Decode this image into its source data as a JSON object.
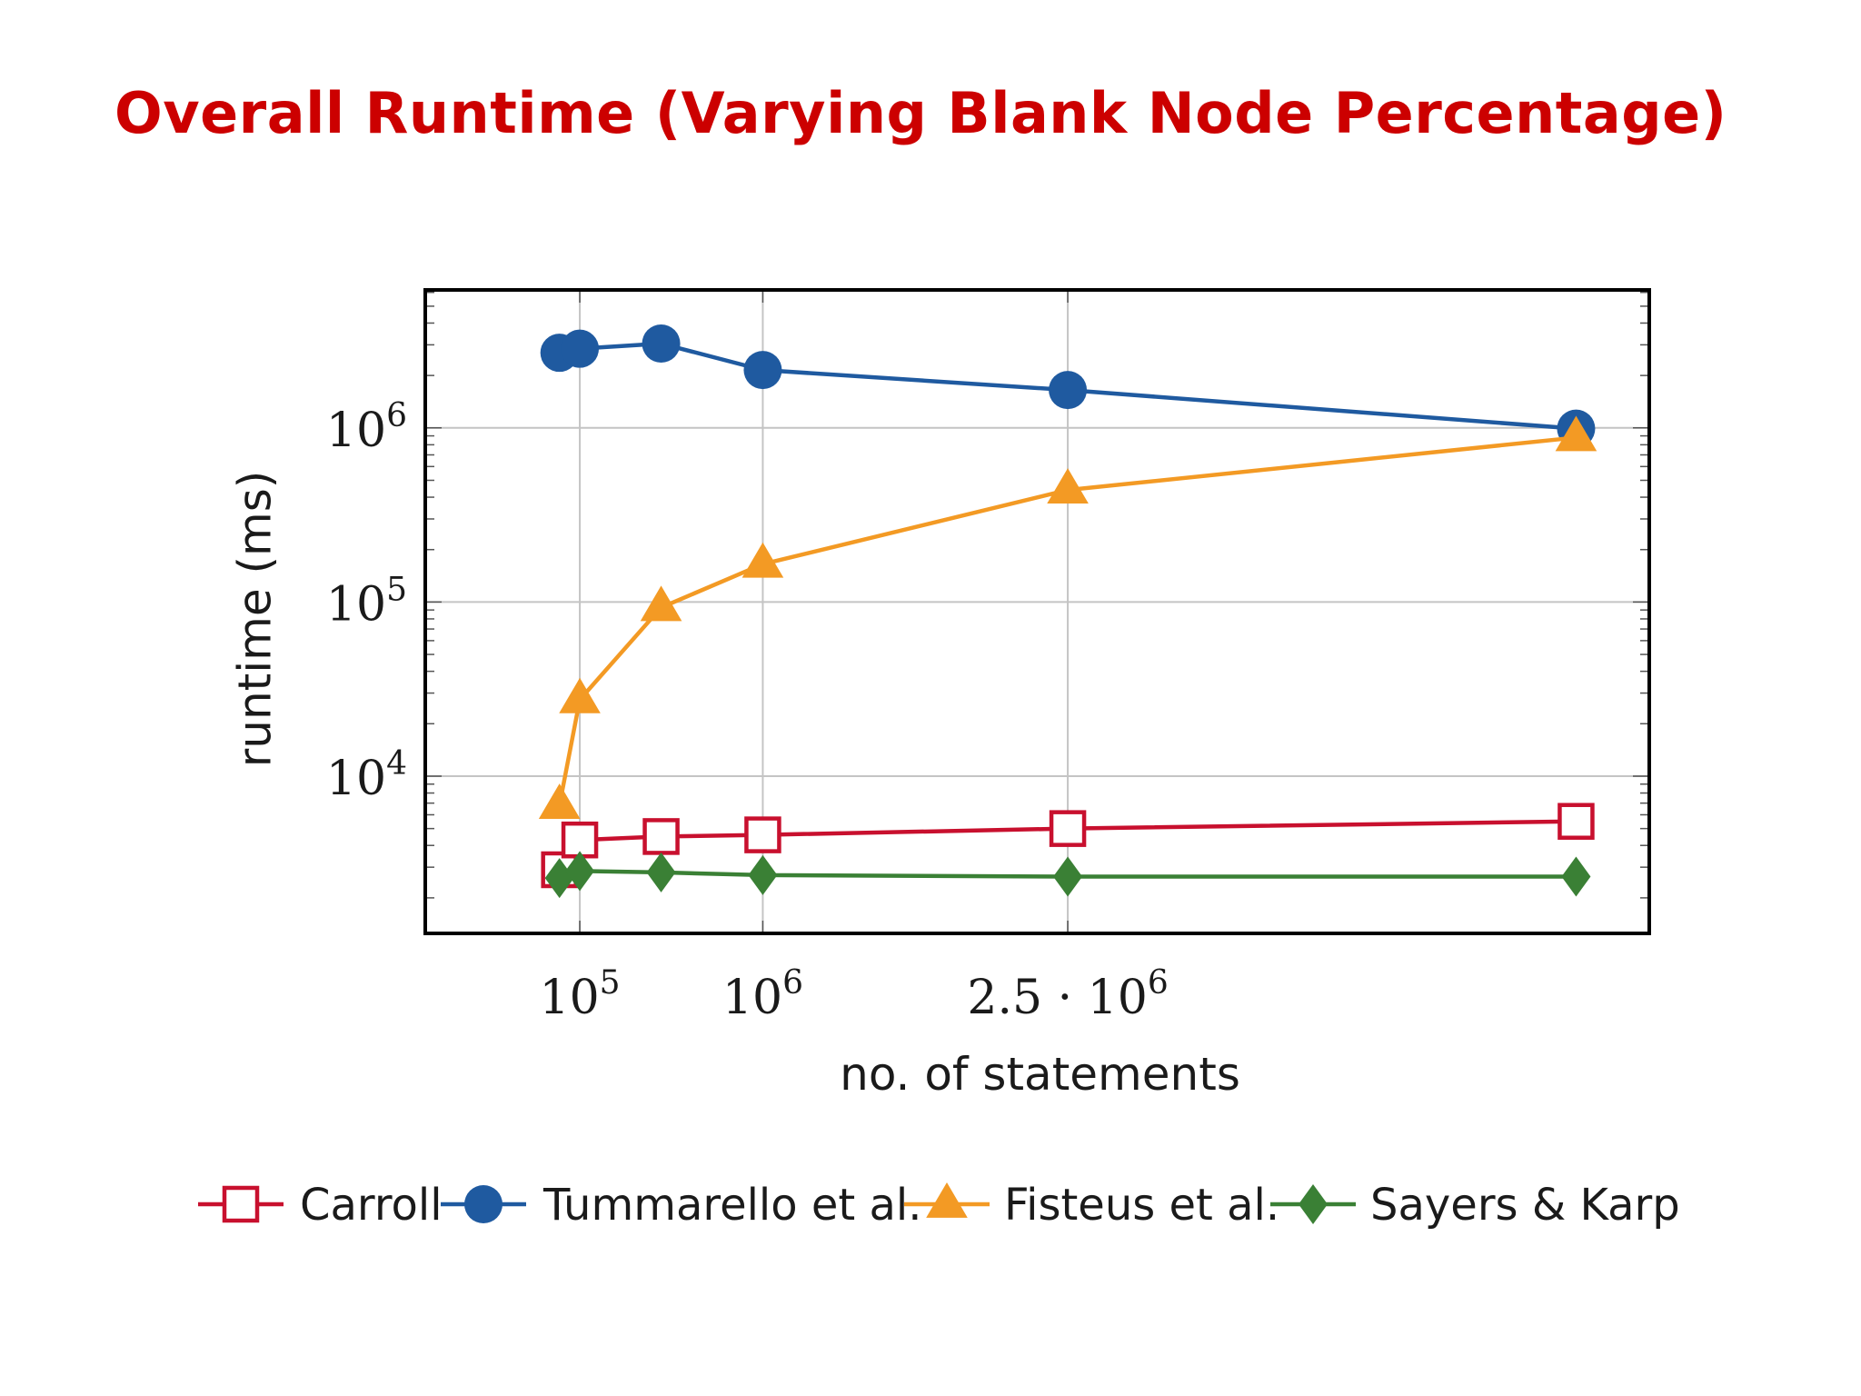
{
  "slide": {
    "title": "Overall Runtime (Varying Blank Node Percentage)"
  },
  "colors": {
    "title": "#cc0000",
    "carroll": "#c8102e",
    "tummarello": "#1f5aa0",
    "fisteus": "#f39a24",
    "sayers": "#3a8035",
    "grid": "#c4c4c4",
    "frame": "#000000"
  },
  "chart_data": {
    "type": "line",
    "title": "",
    "xlabel": "no. of statements",
    "ylabel": "runtime (ms)",
    "xscale": "linear",
    "yscale": "log",
    "xlim": [
      -660000,
      5360000
    ],
    "ylim": [
      1250,
      6200000
    ],
    "xticks": [
      {
        "value": 100000,
        "base": "10",
        "exp": "5"
      },
      {
        "value": 1000000,
        "base": "10",
        "exp": "6"
      },
      {
        "value": 2500000,
        "base": "2.5 · 10",
        "exp": "6"
      }
    ],
    "yticks": [
      {
        "value": 10000,
        "base": "10",
        "exp": "4"
      },
      {
        "value": 100000,
        "base": "10",
        "exp": "5"
      },
      {
        "value": 1000000,
        "base": "10",
        "exp": "6"
      }
    ],
    "grid": true,
    "legend_position": "bottom",
    "series": [
      {
        "name": "Carroll",
        "marker": "open-square",
        "color": "#c8102e",
        "x": [
          0,
          100000,
          500000,
          1000000,
          2500000,
          5000000
        ],
        "y": [
          2900,
          4300,
          4500,
          4600,
          5000,
          5500
        ]
      },
      {
        "name": "Tummarello et al.",
        "marker": "filled-circle",
        "color": "#1f5aa0",
        "x": [
          0,
          100000,
          500000,
          1000000,
          2500000,
          5000000
        ],
        "y": [
          2700000,
          2850000,
          3050000,
          2150000,
          1650000,
          990000
        ]
      },
      {
        "name": "Fisteus et al.",
        "marker": "filled-triangle",
        "color": "#f39a24",
        "x": [
          0,
          100000,
          500000,
          1000000,
          2500000,
          5000000
        ],
        "y": [
          6800,
          27500,
          93000,
          165000,
          440000,
          880000
        ]
      },
      {
        "name": "Sayers & Karp",
        "marker": "filled-diamond",
        "color": "#3a8035",
        "x": [
          0,
          100000,
          500000,
          1000000,
          2500000,
          5000000
        ],
        "y": [
          2600,
          2850,
          2800,
          2700,
          2650,
          2650
        ]
      }
    ]
  }
}
